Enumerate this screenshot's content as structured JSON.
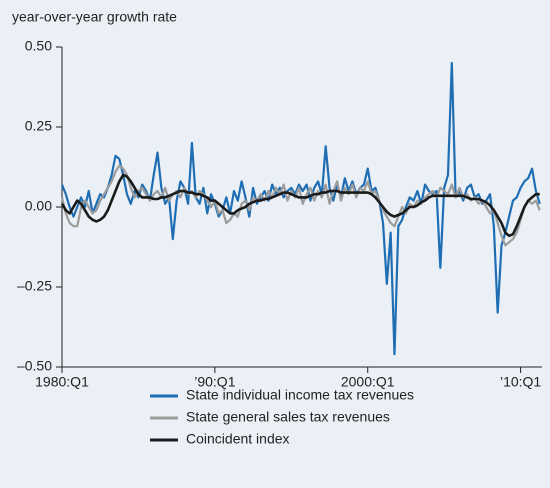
{
  "chart_data": {
    "type": "line",
    "y_axis_label": "year-over-year growth rate",
    "x": [
      1980,
      1980.25,
      1980.5,
      1980.75,
      1981,
      1981.25,
      1981.5,
      1981.75,
      1982,
      1982.25,
      1982.5,
      1982.75,
      1983,
      1983.25,
      1983.5,
      1983.75,
      1984,
      1984.25,
      1984.5,
      1984.75,
      1985,
      1985.25,
      1985.5,
      1985.75,
      1986,
      1986.25,
      1986.5,
      1986.75,
      1987,
      1987.25,
      1987.5,
      1987.75,
      1988,
      1988.25,
      1988.5,
      1988.75,
      1989,
      1989.25,
      1989.5,
      1989.75,
      1990,
      1990.25,
      1990.5,
      1990.75,
      1991,
      1991.25,
      1991.5,
      1991.75,
      1992,
      1992.25,
      1992.5,
      1992.75,
      1993,
      1993.25,
      1993.5,
      1993.75,
      1994,
      1994.25,
      1994.5,
      1994.75,
      1995,
      1995.25,
      1995.5,
      1995.75,
      1996,
      1996.25,
      1996.5,
      1996.75,
      1997,
      1997.25,
      1997.5,
      1997.75,
      1998,
      1998.25,
      1998.5,
      1998.75,
      1999,
      1999.25,
      1999.5,
      1999.75,
      2000,
      2000.25,
      2000.5,
      2000.75,
      2001,
      2001.25,
      2001.5,
      2001.75,
      2002,
      2002.25,
      2002.5,
      2002.75,
      2003,
      2003.25,
      2003.5,
      2003.75,
      2004,
      2004.25,
      2004.5,
      2004.75,
      2005,
      2005.25,
      2005.5,
      2005.75,
      2006,
      2006.25,
      2006.5,
      2006.75,
      2007,
      2007.25,
      2007.5,
      2007.75,
      2008,
      2008.25,
      2008.5,
      2008.75,
      2009,
      2009.25,
      2009.5,
      2009.75,
      2010,
      2010.25,
      2010.5,
      2010.75,
      2011,
      2011.25
    ],
    "xlim": [
      1980,
      2011.4
    ],
    "xticks": [
      {
        "value": 1980,
        "label": "1980:Q1"
      },
      {
        "value": 1990,
        "label": "’90:Q1"
      },
      {
        "value": 2000,
        "label": "2000:Q1"
      },
      {
        "value": 2010,
        "label": "’10:Q1"
      }
    ],
    "ylim": [
      -0.5,
      0.5
    ],
    "yticks": [
      {
        "value": 0.5,
        "label": "0.50"
      },
      {
        "value": 0.25,
        "label": "0.25"
      },
      {
        "value": 0,
        "label": "0.00"
      },
      {
        "value": -0.25,
        "label": "–0.25"
      },
      {
        "value": -0.5,
        "label": "–0.50"
      }
    ],
    "series": [
      {
        "name": "State individual income tax revenues",
        "color": "#1f6eb4",
        "width": 2.2,
        "values": [
          0.07,
          0.04,
          0.0,
          -0.03,
          0.0,
          0.03,
          0.0,
          0.05,
          -0.02,
          0.01,
          0.04,
          0.03,
          0.06,
          0.1,
          0.16,
          0.15,
          0.1,
          0.04,
          0.01,
          0.05,
          0.03,
          0.07,
          0.05,
          0.02,
          0.1,
          0.17,
          0.06,
          0.01,
          0.03,
          -0.1,
          0.02,
          0.08,
          0.06,
          0.01,
          0.2,
          0.03,
          0.01,
          0.06,
          -0.02,
          0.04,
          0.01,
          -0.03,
          -0.01,
          0.03,
          -0.02,
          0.05,
          0.02,
          0.08,
          0.03,
          -0.03,
          0.06,
          0.01,
          0.03,
          0.05,
          0.02,
          0.07,
          0.04,
          0.06,
          0.03,
          0.05,
          0.06,
          0.04,
          0.07,
          0.05,
          0.07,
          0.02,
          0.06,
          0.08,
          0.04,
          0.19,
          0.06,
          0.02,
          0.07,
          0.03,
          0.09,
          0.05,
          0.08,
          0.04,
          0.06,
          0.07,
          0.12,
          0.05,
          0.06,
          0.02,
          -0.05,
          -0.24,
          -0.08,
          -0.46,
          -0.06,
          -0.04,
          0.0,
          0.03,
          0.02,
          0.05,
          0.01,
          0.07,
          0.05,
          0.04,
          0.05,
          -0.19,
          0.06,
          0.1,
          0.45,
          0.03,
          0.05,
          0.02,
          0.06,
          0.07,
          0.03,
          0.04,
          0.01,
          0.02,
          0.04,
          -0.06,
          -0.33,
          -0.12,
          -0.08,
          -0.03,
          0.02,
          0.03,
          0.06,
          0.08,
          0.09,
          0.12,
          0.05,
          0.01
        ]
      },
      {
        "name": "State general sales tax revenues",
        "color": "#9c9c9c",
        "width": 2.2,
        "values": [
          0.03,
          -0.02,
          -0.05,
          -0.06,
          -0.06,
          0.0,
          0.02,
          0.0,
          -0.02,
          -0.01,
          0.02,
          0.04,
          0.06,
          0.08,
          0.11,
          0.13,
          0.12,
          0.1,
          0.06,
          0.03,
          0.05,
          0.06,
          0.04,
          0.02,
          0.04,
          0.05,
          0.03,
          0.06,
          0.02,
          0.04,
          0.05,
          0.03,
          0.06,
          0.04,
          0.05,
          0.03,
          0.05,
          0.04,
          0.02,
          0.0,
          0.02,
          -0.02,
          -0.01,
          -0.05,
          -0.04,
          -0.02,
          -0.03,
          0.01,
          0.02,
          -0.01,
          0.03,
          0.02,
          0.04,
          0.02,
          0.05,
          0.03,
          0.06,
          0.04,
          0.07,
          0.02,
          0.05,
          0.03,
          0.06,
          0.01,
          0.04,
          0.06,
          0.02,
          0.05,
          0.03,
          0.07,
          0.01,
          0.05,
          0.08,
          0.02,
          0.06,
          0.04,
          0.07,
          0.03,
          0.06,
          0.05,
          0.08,
          0.04,
          0.05,
          0.02,
          -0.01,
          -0.03,
          -0.05,
          -0.06,
          -0.03,
          0.0,
          -0.02,
          0.01,
          0.0,
          0.02,
          0.01,
          0.03,
          0.04,
          0.05,
          0.03,
          0.06,
          0.05,
          0.04,
          0.07,
          0.03,
          0.06,
          0.03,
          0.04,
          0.02,
          0.03,
          0.01,
          0.02,
          0.0,
          -0.02,
          -0.01,
          -0.05,
          -0.09,
          -0.12,
          -0.11,
          -0.1,
          -0.08,
          -0.04,
          0.0,
          0.02,
          0.01,
          0.02,
          -0.01
        ]
      },
      {
        "name": "Coincident index",
        "color": "#1a1a1a",
        "width": 2.6,
        "values": [
          0.01,
          -0.01,
          -0.02,
          0.0,
          0.02,
          0.01,
          -0.01,
          -0.03,
          -0.04,
          -0.045,
          -0.04,
          -0.03,
          -0.01,
          0.02,
          0.05,
          0.08,
          0.1,
          0.095,
          0.08,
          0.06,
          0.04,
          0.03,
          0.03,
          0.03,
          0.025,
          0.025,
          0.03,
          0.03,
          0.035,
          0.04,
          0.045,
          0.05,
          0.05,
          0.045,
          0.045,
          0.04,
          0.04,
          0.035,
          0.03,
          0.02,
          0.02,
          0.01,
          0.0,
          -0.01,
          -0.02,
          -0.02,
          -0.01,
          -0.005,
          0.0,
          0.01,
          0.015,
          0.02,
          0.02,
          0.025,
          0.025,
          0.03,
          0.035,
          0.04,
          0.045,
          0.045,
          0.04,
          0.035,
          0.03,
          0.03,
          0.03,
          0.035,
          0.04,
          0.04,
          0.045,
          0.045,
          0.05,
          0.05,
          0.05,
          0.045,
          0.045,
          0.045,
          0.045,
          0.045,
          0.045,
          0.045,
          0.045,
          0.04,
          0.03,
          0.015,
          0.0,
          -0.015,
          -0.025,
          -0.03,
          -0.025,
          -0.02,
          -0.01,
          0.0,
          0.0,
          0.005,
          0.015,
          0.02,
          0.03,
          0.035,
          0.035,
          0.035,
          0.035,
          0.035,
          0.035,
          0.035,
          0.035,
          0.035,
          0.03,
          0.025,
          0.025,
          0.025,
          0.02,
          0.015,
          0.005,
          -0.01,
          -0.03,
          -0.05,
          -0.08,
          -0.09,
          -0.085,
          -0.06,
          -0.03,
          0.0,
          0.02,
          0.03,
          0.04,
          0.04
        ]
      }
    ]
  }
}
